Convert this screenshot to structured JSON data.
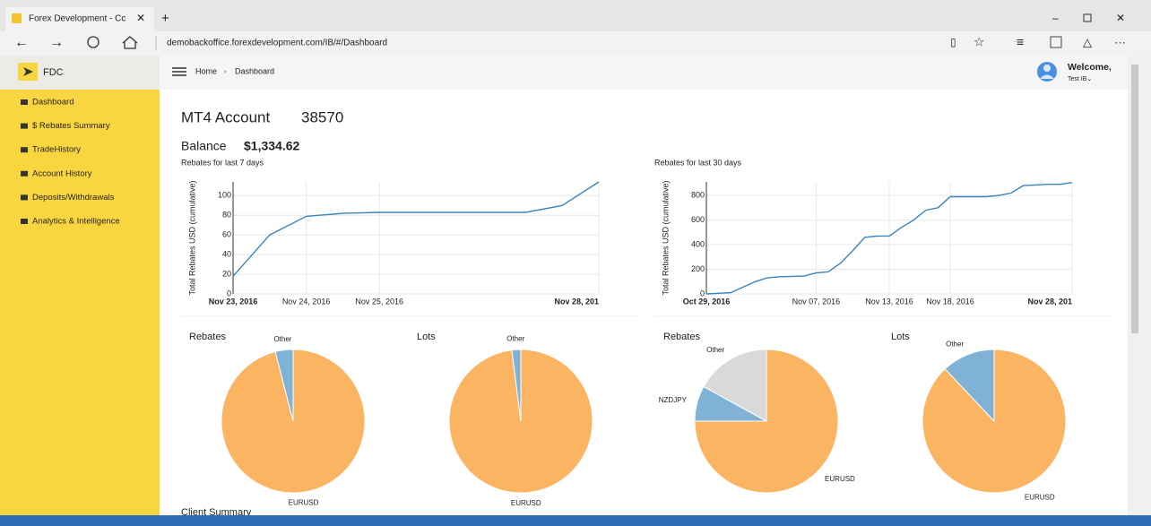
{
  "browser": {
    "tab_title": "Forex Development - Cc",
    "url": "demobackoffice.forexdevelopment.com/IB/#/Dashboard"
  },
  "sidebar": {
    "logo": "FDC",
    "menu": [
      "Dashboard",
      "$ Rebates Summary",
      "TradeHistory",
      "Account History",
      "Deposits/Withdrawals",
      "Analytics & Intelligence"
    ]
  },
  "header": {
    "breadcrumb": [
      "Home",
      "Dashboard"
    ],
    "welcome": "Welcome,",
    "user": "Test IB⌄"
  },
  "main": {
    "account_label": "MT4 Account",
    "account_number": "38570",
    "balance_label": "Balance",
    "balance": "$1,334.62",
    "section": "Client Summary"
  },
  "chart_data": [
    {
      "type": "line",
      "title": "Rebates for last 7 days",
      "y_label": "Total Rebates USD (cumulative)",
      "x": [
        "2016-11-23",
        "2016-11-23T12:00",
        "2016-11-24",
        "2016-11-24T12:00",
        "2016-11-25",
        "2016-11-26",
        "2016-11-27",
        "2016-11-27T12:00",
        "2016-11-28"
      ],
      "values": [
        18,
        60,
        79,
        82,
        83,
        83,
        83,
        90,
        114
      ],
      "color": "#3a84c0",
      "xlim": [
        "2016-11-23",
        "2016-11-28"
      ],
      "xticks": [
        {
          "value": "2016-11-23",
          "label": "Nov 23, 2016"
        },
        {
          "value": "2016-11-24",
          "label": "Nov 24, 2016"
        },
        {
          "value": "2016-11-25",
          "label": "Nov 25, 2016"
        },
        {
          "value": "2016-11-28",
          "label": "Nov 28, 201"
        }
      ],
      "ylim": [
        0,
        114
      ],
      "yticks": [
        0,
        20,
        40,
        60,
        80,
        100
      ],
      "grid": true
    },
    {
      "type": "line",
      "title": "Rebates for last 30 days",
      "y_label": "Total Rebates USD (cumulative)",
      "x": [
        "2016-10-29",
        "2016-10-31",
        "2016-11-02",
        "2016-11-03",
        "2016-11-04",
        "2016-11-06",
        "2016-11-07",
        "2016-11-08",
        "2016-11-09",
        "2016-11-10",
        "2016-11-11",
        "2016-11-12",
        "2016-11-13",
        "2016-11-14",
        "2016-11-15",
        "2016-11-16",
        "2016-11-17",
        "2016-11-18",
        "2016-11-21",
        "2016-11-22",
        "2016-11-23",
        "2016-11-24",
        "2016-11-26",
        "2016-11-27",
        "2016-11-28"
      ],
      "values": [
        0,
        10,
        100,
        130,
        140,
        145,
        170,
        180,
        250,
        350,
        460,
        470,
        470,
        540,
        600,
        680,
        700,
        790,
        790,
        800,
        820,
        880,
        890,
        890,
        905
      ],
      "color": "#3a84c0",
      "xlim": [
        "2016-10-29",
        "2016-11-28"
      ],
      "xticks": [
        {
          "value": "2016-10-29",
          "label": "Oct 29, 2016"
        },
        {
          "value": "2016-11-07",
          "label": "Nov 07, 2016"
        },
        {
          "value": "2016-11-13",
          "label": "Nov 13, 2016"
        },
        {
          "value": "2016-11-18",
          "label": "Nov 18, 2016"
        },
        {
          "value": "2016-11-28",
          "label": "Nov 28, 201"
        }
      ],
      "ylim": [
        0,
        910
      ],
      "yticks": [
        0,
        200,
        400,
        600,
        800
      ],
      "grid": true
    },
    {
      "type": "pie",
      "title": "Rebates",
      "categories": [
        "EURUSD",
        "Other"
      ],
      "values": [
        96,
        4
      ],
      "colors": [
        "#fbb462",
        "#7fb2d4"
      ]
    },
    {
      "type": "pie",
      "title": "Lots",
      "categories": [
        "EURUSD",
        "Other"
      ],
      "values": [
        98,
        2
      ],
      "colors": [
        "#fbb462",
        "#7fb2d4"
      ]
    },
    {
      "type": "pie",
      "title": "Rebates",
      "categories": [
        "EURUSD",
        "NZDJPY",
        "Other"
      ],
      "values": [
        75,
        8,
        17
      ],
      "colors": [
        "#fbb462",
        "#7fb2d4",
        "#d9d9d9"
      ]
    },
    {
      "type": "pie",
      "title": "Lots",
      "categories": [
        "EURUSD",
        "Other"
      ],
      "values": [
        88,
        12
      ],
      "colors": [
        "#fbb462",
        "#7fb2d4"
      ]
    }
  ]
}
